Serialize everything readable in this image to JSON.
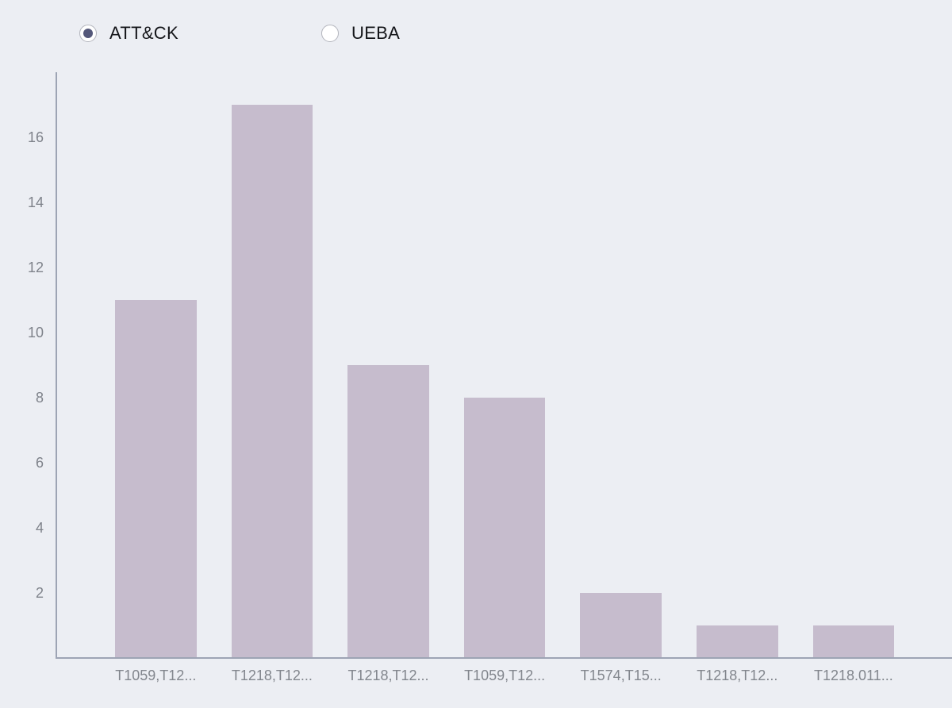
{
  "controls": {
    "radio_group": [
      {
        "label": "ATT&CK",
        "selected": true
      },
      {
        "label": "UEBA",
        "selected": false
      }
    ]
  },
  "chart_data": {
    "type": "bar",
    "title": "",
    "xlabel": "",
    "ylabel": "",
    "categories": [
      "T1059,T12...",
      "T1218,T12...",
      "T1218,T12...",
      "T1059,T12...",
      "T1574,T15...",
      "T1218,T12...",
      "T1218.011..."
    ],
    "values": [
      11,
      17,
      9,
      8,
      2,
      1,
      1
    ],
    "series": [
      {
        "name": "ATT&CK",
        "values": [
          11,
          17,
          9,
          8,
          2,
          1,
          1
        ]
      }
    ],
    "ylim": [
      0,
      18
    ],
    "yticks": [
      2,
      4,
      6,
      8,
      10,
      12,
      14,
      16
    ],
    "grid": false,
    "legend_position": "top-left",
    "colors": {
      "bar": "#c6bccd",
      "axis": "#9da4b4",
      "tick_text": "#7e828a",
      "background": "#eceef3",
      "radio_selected_dot": "#54587a"
    }
  }
}
